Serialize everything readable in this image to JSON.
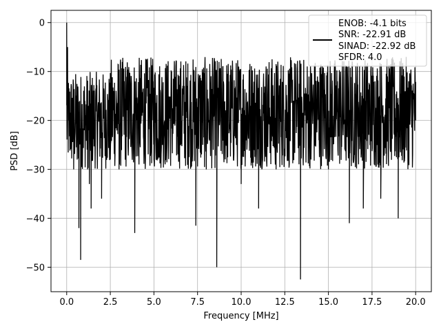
{
  "chart_data": {
    "type": "line",
    "title": "",
    "xlabel": "Frequency [MHz]",
    "ylabel": "PSD [dB]",
    "xlim": [
      -0.9,
      20.9
    ],
    "ylim": [
      -55.0,
      2.5
    ],
    "grid": true,
    "legend_position": "top-right",
    "x_ticks": [
      0.0,
      2.5,
      5.0,
      7.5,
      10.0,
      12.5,
      15.0,
      17.5,
      20.0
    ],
    "x_tick_labels": [
      "0.0",
      "2.5",
      "5.0",
      "7.5",
      "10.0",
      "12.5",
      "15.0",
      "17.5",
      "20.0"
    ],
    "y_ticks": [
      0,
      -10,
      -20,
      -30,
      -40,
      -50
    ],
    "y_tick_labels": [
      "0",
      "−10",
      "−20",
      "−30",
      "−40",
      "−50"
    ],
    "legend": {
      "lines": [
        "ENOB: -4.1 bits",
        "SNR: -22.91 dB",
        "SINAD: -22.92 dB",
        "SFDR: 4.0"
      ]
    },
    "series": [
      {
        "color": "#000000",
        "line_width": 2,
        "noise_floor_db": -20,
        "envelope_top_db": -10,
        "envelope_bottom_db": -30,
        "x": [
          0.0,
          0.05,
          0.08,
          0.12,
          0.2,
          0.3,
          0.4,
          0.5,
          0.6,
          0.7,
          0.8,
          1.0,
          1.2,
          1.3,
          1.4,
          1.5,
          2.0,
          2.5,
          3.0,
          3.9,
          5.0,
          6.5,
          7.4,
          8.0,
          8.6,
          9.0,
          10.0,
          11.0,
          12.0,
          13.0,
          13.4,
          14.0,
          15.0,
          16.0,
          16.2,
          17.0,
          18.0,
          19.0,
          20.0
        ],
        "y": [
          0.0,
          -5.0,
          -14.0,
          -20.0,
          -26.0,
          -22.0,
          -30.0,
          -20.0,
          -28.0,
          -42.0,
          -48.5,
          -22.0,
          -30.0,
          -33.0,
          -38.0,
          -25.0,
          -36.0,
          -28.0,
          -30.0,
          -43.0,
          -28.0,
          -25.0,
          -41.5,
          -30.0,
          -50.0,
          -27.0,
          -33.0,
          -38.0,
          -30.0,
          -24.0,
          -52.5,
          -28.0,
          -30.0,
          -25.0,
          -41.0,
          -38.0,
          -36.0,
          -40.0,
          -20.0
        ]
      }
    ]
  }
}
